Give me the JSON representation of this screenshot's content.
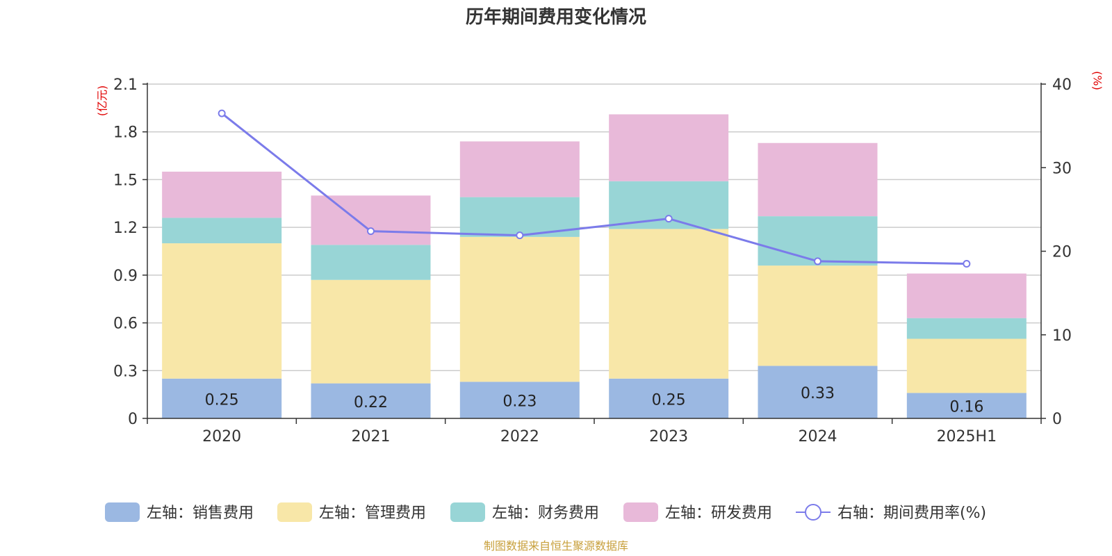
{
  "chart_data": {
    "type": "bar",
    "title": "历年期间费用变化情况",
    "categories": [
      "2020",
      "2021",
      "2022",
      "2023",
      "2024",
      "2025H1"
    ],
    "left_axis": {
      "unit": "(亿元)",
      "range": [
        0,
        2.1
      ],
      "ticks": [
        "0",
        "0.3",
        "0.6",
        "0.9",
        "1.2",
        "1.5",
        "1.8",
        "2.1"
      ]
    },
    "right_axis": {
      "unit": "(%)",
      "range": [
        0,
        40
      ],
      "ticks": [
        "0",
        "10",
        "20",
        "30",
        "40"
      ]
    },
    "series": [
      {
        "name": "左轴：销售费用",
        "type": "bar",
        "axis": "left",
        "color": "#9bb8e2",
        "values": [
          0.25,
          0.22,
          0.23,
          0.25,
          0.33,
          0.16
        ],
        "labels": [
          "0.25",
          "0.22",
          "0.23",
          "0.25",
          "0.33",
          "0.16"
        ]
      },
      {
        "name": "左轴：管理费用",
        "type": "bar",
        "axis": "left",
        "color": "#f8e7a8",
        "values": [
          0.85,
          0.65,
          0.91,
          0.94,
          0.63,
          0.34
        ]
      },
      {
        "name": "左轴：财务费用",
        "type": "bar",
        "axis": "left",
        "color": "#98d5d6",
        "values": [
          0.16,
          0.22,
          0.25,
          0.3,
          0.31,
          0.13
        ]
      },
      {
        "name": "左轴：研发费用",
        "type": "bar",
        "axis": "left",
        "color": "#e8b9d9",
        "values": [
          0.29,
          0.31,
          0.35,
          0.42,
          0.46,
          0.28
        ]
      },
      {
        "name": "右轴：期间费用率(%)",
        "type": "line",
        "axis": "right",
        "color": "#7b7bea",
        "values": [
          36.5,
          22.4,
          21.9,
          23.9,
          18.8,
          18.5
        ]
      }
    ],
    "grid": true,
    "legend": "bottom",
    "source": "制图数据来自恒生聚源数据库"
  }
}
